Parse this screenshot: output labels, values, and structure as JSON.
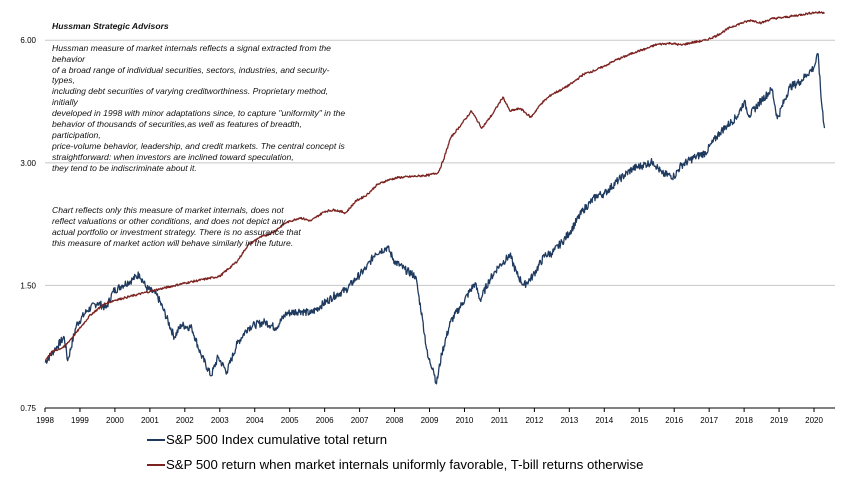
{
  "annotation": {
    "title": "Hussman Strategic Advisors",
    "paragraph1": "Hussman measure of market internals reflects a signal extracted from the behavior\nof a broad range of individual securities, sectors, industries, and security-types,\nincluding debt securities of varying creditworthiness.  Proprietary method, initially\ndeveloped in 1998 with minor adaptations  since, to capture \"uniformity\" in the\nbehavior of thousands  of securities,as well as features of breadth, participation,\nprice-volume behavior, leadership, and credit markets. The central concept is\nstraightforward:  when investors are inclined toward speculation,\nthey tend to be indiscriminate about it.",
    "paragraph2": "Chart reflects only this measure of market internals, does not\nreflect valuations  or other conditions, and does not depict any\nactual portfolio or investment strategy. There is no assurance that\nthis measure of market action will behave similarly in the future."
  },
  "legend": [
    {
      "label": "S&P 500 Index cumulative total return",
      "color": "#1f3a5f"
    },
    {
      "label": "S&P 500 return when market internals uniformly favorable, T-bill returns otherwise",
      "color": "#7b2320"
    }
  ],
  "chart_data": {
    "type": "line",
    "title": "",
    "xlabel": "",
    "ylabel": "",
    "y_scale": "log",
    "ylim": [
      0.75,
      7.2
    ],
    "xlim": [
      1998,
      2020.6
    ],
    "y_ticks": [
      "0.75",
      "1.50",
      "3.00",
      "6.00"
    ],
    "x_ticks": [
      "1998",
      "1999",
      "2000",
      "2001",
      "2002",
      "2003",
      "2004",
      "2005",
      "2006",
      "2007",
      "2008",
      "2009",
      "2010",
      "2011",
      "2012",
      "2013",
      "2014",
      "2015",
      "2016",
      "2017",
      "2018",
      "2019",
      "2020"
    ],
    "grid": {
      "horizontal": true,
      "vertical": false
    },
    "legend_position": "bottom",
    "series": [
      {
        "name": "S&P 500 Index cumulative total return",
        "color": "#1f3a5f",
        "x": [
          1998.0,
          1998.3,
          1998.55,
          1998.65,
          1998.9,
          1999.2,
          1999.5,
          1999.75,
          1999.95,
          2000.2,
          2000.5,
          2000.7,
          2000.9,
          2001.2,
          2001.4,
          2001.7,
          2001.9,
          2002.2,
          2002.45,
          2002.75,
          2002.95,
          2003.2,
          2003.5,
          2003.8,
          2004.0,
          2004.3,
          2004.6,
          2004.9,
          2005.3,
          2005.6,
          2005.9,
          2006.3,
          2006.6,
          2006.9,
          2007.2,
          2007.45,
          2007.8,
          2008.0,
          2008.3,
          2008.6,
          2008.8,
          2008.95,
          2009.1,
          2009.2,
          2009.35,
          2009.6,
          2009.95,
          2010.3,
          2010.45,
          2010.7,
          2010.95,
          2011.3,
          2011.5,
          2011.7,
          2011.95,
          2012.3,
          2012.5,
          2012.8,
          2013.0,
          2013.4,
          2013.8,
          2014.0,
          2014.4,
          2014.8,
          2015.1,
          2015.4,
          2015.65,
          2016.0,
          2016.2,
          2016.6,
          2016.9,
          2017.3,
          2017.8,
          2018.0,
          2018.15,
          2018.5,
          2018.8,
          2018.95,
          2019.3,
          2019.6,
          2019.8,
          2020.0,
          2020.12,
          2020.2,
          2020.3
        ],
        "values": [
          0.97,
          1.05,
          1.12,
          0.98,
          1.2,
          1.3,
          1.36,
          1.32,
          1.45,
          1.5,
          1.55,
          1.6,
          1.48,
          1.42,
          1.3,
          1.12,
          1.2,
          1.18,
          1.02,
          0.9,
          1.0,
          0.92,
          1.08,
          1.18,
          1.2,
          1.22,
          1.18,
          1.28,
          1.3,
          1.28,
          1.34,
          1.42,
          1.46,
          1.56,
          1.66,
          1.8,
          1.86,
          1.72,
          1.64,
          1.58,
          1.24,
          1.0,
          0.94,
          0.86,
          1.02,
          1.22,
          1.36,
          1.52,
          1.38,
          1.54,
          1.66,
          1.78,
          1.6,
          1.5,
          1.58,
          1.78,
          1.8,
          1.92,
          2.02,
          2.3,
          2.5,
          2.52,
          2.72,
          2.9,
          2.96,
          3.02,
          2.82,
          2.78,
          2.96,
          3.1,
          3.18,
          3.56,
          3.9,
          4.24,
          3.92,
          4.28,
          4.55,
          3.85,
          4.6,
          4.75,
          4.95,
          5.15,
          5.55,
          4.35,
          3.65
        ]
      },
      {
        "name": "S&P 500 return when market internals uniformly favorable, T-bill returns otherwise",
        "color": "#7b2320",
        "x": [
          1998.0,
          1998.2,
          1998.55,
          1998.9,
          1999.3,
          1999.7,
          2000.0,
          2000.3,
          2001.0,
          2002.0,
          2003.0,
          2003.5,
          2003.8,
          2004.1,
          2004.5,
          2004.9,
          2005.3,
          2005.6,
          2006.0,
          2006.3,
          2006.6,
          2006.9,
          2007.2,
          2007.5,
          2007.8,
          2008.1,
          2008.6,
          2009.0,
          2009.25,
          2009.4,
          2009.6,
          2009.9,
          2010.2,
          2010.5,
          2010.8,
          2011.1,
          2011.3,
          2011.6,
          2011.9,
          2012.2,
          2012.5,
          2012.8,
          2013.1,
          2013.4,
          2013.7,
          2014.0,
          2014.3,
          2014.6,
          2014.9,
          2015.2,
          2015.5,
          2015.9,
          2016.2,
          2016.5,
          2016.9,
          2017.2,
          2017.6,
          2017.9,
          2018.2,
          2018.5,
          2018.8,
          2019.1,
          2019.4,
          2019.7,
          2020.0,
          2020.3
        ],
        "values": [
          0.98,
          1.03,
          1.06,
          1.15,
          1.27,
          1.35,
          1.38,
          1.4,
          1.45,
          1.52,
          1.58,
          1.72,
          1.88,
          1.96,
          2.02,
          2.14,
          2.2,
          2.16,
          2.28,
          2.3,
          2.26,
          2.42,
          2.5,
          2.65,
          2.72,
          2.76,
          2.78,
          2.8,
          2.84,
          3.05,
          3.45,
          3.72,
          4.02,
          3.65,
          3.95,
          4.35,
          4.02,
          4.08,
          3.88,
          4.2,
          4.42,
          4.55,
          4.72,
          4.95,
          5.05,
          5.18,
          5.35,
          5.48,
          5.62,
          5.72,
          5.86,
          5.9,
          5.84,
          5.92,
          6.0,
          6.15,
          6.45,
          6.6,
          6.72,
          6.62,
          6.78,
          6.82,
          6.88,
          6.95,
          7.02,
          7.02
        ]
      }
    ]
  }
}
